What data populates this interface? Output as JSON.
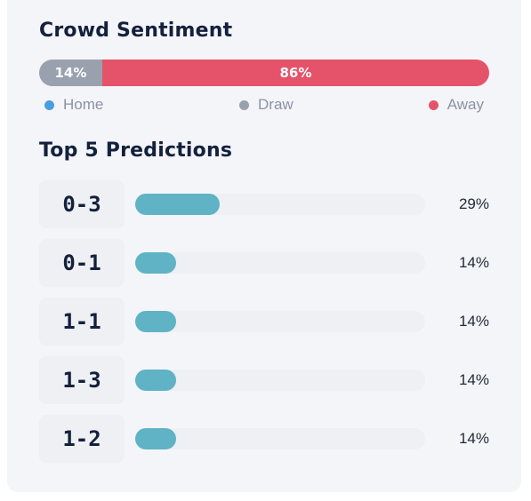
{
  "sentiment": {
    "title": "Crowd Sentiment",
    "segments": [
      {
        "key": "draw",
        "label": "14%",
        "value": 14,
        "color": "#9aa1ae"
      },
      {
        "key": "away",
        "label": "86%",
        "value": 86,
        "color": "#e5536a"
      }
    ],
    "legend": [
      {
        "label": "Home",
        "color": "#4a9de0"
      },
      {
        "label": "Draw",
        "color": "#9aa1ae"
      },
      {
        "label": "Away",
        "color": "#e5536a"
      }
    ]
  },
  "predictions": {
    "title": "Top 5 Predictions",
    "bar_color": "#5fb3c5",
    "items": [
      {
        "score": "0-3",
        "percent_label": "29%",
        "percent": 29
      },
      {
        "score": "0-1",
        "percent_label": "14%",
        "percent": 14
      },
      {
        "score": "1-1",
        "percent_label": "14%",
        "percent": 14
      },
      {
        "score": "1-3",
        "percent_label": "14%",
        "percent": 14
      },
      {
        "score": "1-2",
        "percent_label": "14%",
        "percent": 14
      }
    ]
  }
}
